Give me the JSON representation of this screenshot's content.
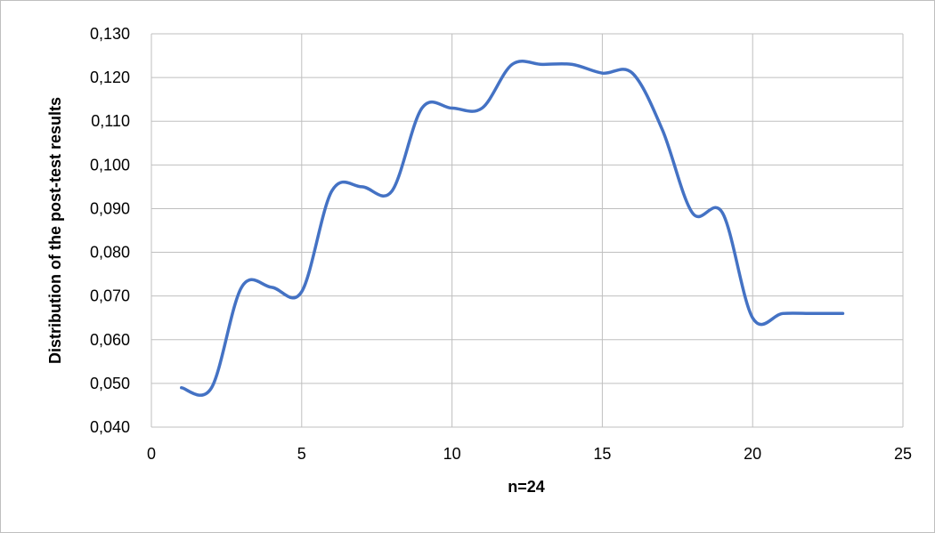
{
  "colors": {
    "series_line": "#4472C4",
    "gridline": "#bfbfbf",
    "frame_border": "#bfbfbf",
    "background": "#ffffff"
  },
  "chart_data": {
    "type": "line",
    "xlabel": "n=24",
    "ylabel": "Distribution of the post-test results",
    "xlim": [
      0,
      25
    ],
    "ylim": [
      0.04,
      0.13
    ],
    "x_ticks": [
      0,
      5,
      10,
      15,
      20,
      25
    ],
    "y_ticks": [
      0.04,
      0.05,
      0.06,
      0.07,
      0.08,
      0.09,
      0.1,
      0.11,
      0.12,
      0.13
    ],
    "x_tick_labels": [
      "0",
      "5",
      "10",
      "15",
      "20",
      "25"
    ],
    "y_tick_labels": [
      "0,040",
      "0,050",
      "0,060",
      "0,070",
      "0,080",
      "0,090",
      "0,100",
      "0,110",
      "0,120",
      "0,130"
    ],
    "grid": true,
    "smoothed": true,
    "legend": "none",
    "series": [
      {
        "x": [
          1,
          2,
          3,
          4,
          5,
          6,
          7,
          8,
          9,
          10,
          11,
          12,
          13,
          14,
          15,
          16,
          17,
          18,
          19,
          20,
          21,
          22,
          23
        ],
        "y": [
          0.049,
          0.049,
          0.072,
          0.072,
          0.071,
          0.094,
          0.095,
          0.094,
          0.113,
          0.113,
          0.113,
          0.123,
          0.123,
          0.123,
          0.121,
          0.121,
          0.108,
          0.089,
          0.089,
          0.065,
          0.066,
          0.066,
          0.066
        ]
      }
    ]
  }
}
